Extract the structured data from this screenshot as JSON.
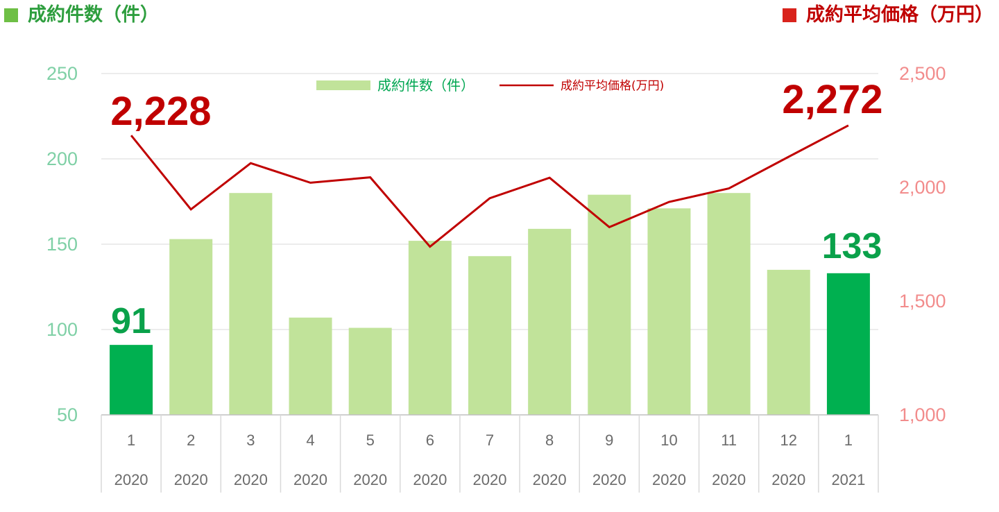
{
  "headers": {
    "left": "成約件数（件）",
    "right": "成約平均価格（万円）",
    "left_color": "#6ebf45",
    "right_color": "#d9231c"
  },
  "chart_data": {
    "type": "bar+line",
    "categories": [
      "1",
      "2",
      "3",
      "4",
      "5",
      "6",
      "7",
      "8",
      "9",
      "10",
      "11",
      "12",
      "1"
    ],
    "years": [
      "2020",
      "2020",
      "2020",
      "2020",
      "2020",
      "2020",
      "2020",
      "2020",
      "2020",
      "2020",
      "2020",
      "2020",
      "2021"
    ],
    "series": [
      {
        "name": "成約件数（件）",
        "type": "bar",
        "axis": "left",
        "values": [
          91,
          153,
          180,
          107,
          101,
          152,
          143,
          159,
          179,
          171,
          180,
          135,
          133
        ],
        "color": "#c1e39a",
        "highlight_color": "#00b050",
        "highlight_indices": [
          0,
          12
        ]
      },
      {
        "name": "成約平均価格(万円)",
        "type": "line",
        "axis": "right",
        "values": [
          2228,
          1903,
          2106,
          2020,
          2044,
          1739,
          1952,
          2042,
          1825,
          1936,
          1995,
          2134,
          2272
        ],
        "color": "#c00000"
      }
    ],
    "left_axis": {
      "ylim": [
        50,
        250
      ],
      "ticks": [
        "50",
        "100",
        "150",
        "200",
        "250"
      ],
      "color": "#7fd0a6"
    },
    "right_axis": {
      "ylim": [
        1000,
        2500
      ],
      "ticks": [
        "1,000",
        "1,500",
        "2,000",
        "2,500"
      ],
      "color": "#f28c8c"
    },
    "annotations": {
      "first_price": "2,228",
      "last_price": "2,272",
      "first_count": "91",
      "last_count": "133"
    },
    "grid": true,
    "legend_position": "top-center"
  }
}
